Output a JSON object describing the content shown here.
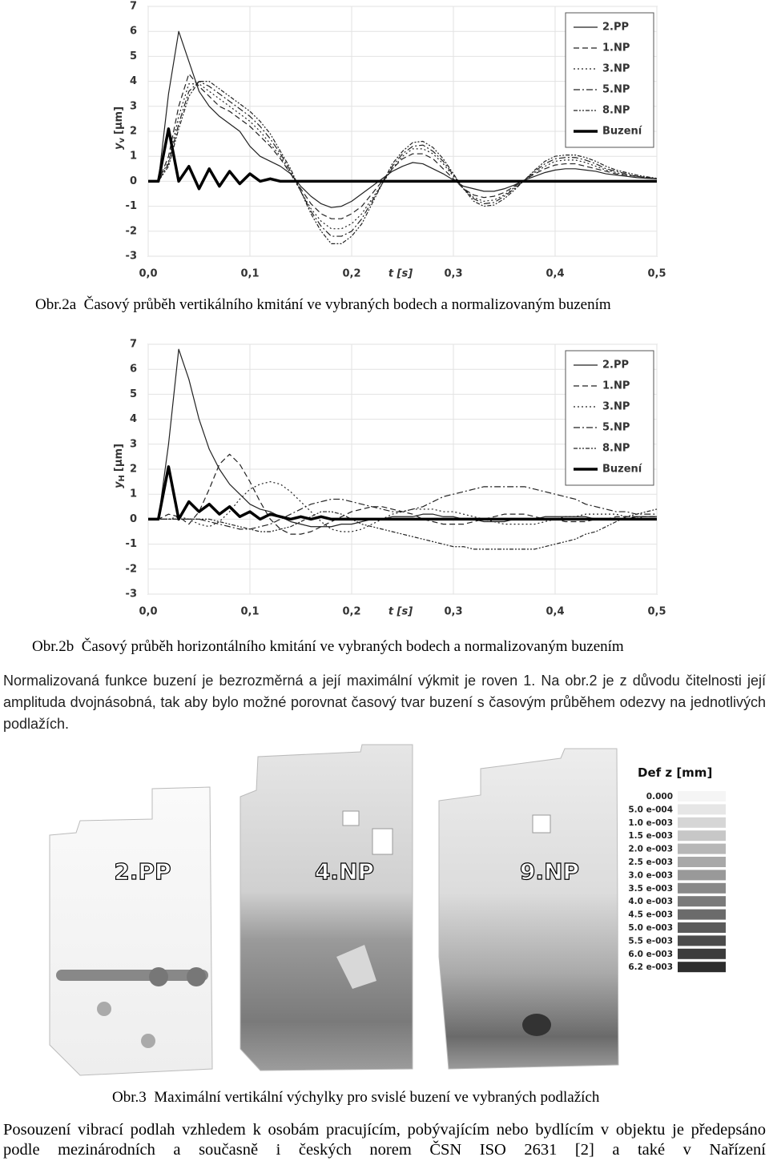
{
  "chart_data": [
    {
      "type": "line",
      "ylabel": {
        "symbol": "y",
        "subscript": "v",
        "unit": "[μm]"
      },
      "xlabel": "t [s]",
      "xlim": [
        0,
        0.5
      ],
      "ylim": [
        -3,
        7
      ],
      "xticks": [
        {
          "value": 0,
          "label": "0,0"
        },
        {
          "value": 0.1,
          "label": "0,1"
        },
        {
          "value": 0.2,
          "label": "0,2"
        },
        {
          "value": 0.3,
          "label": "0,3"
        },
        {
          "value": 0.4,
          "label": "0,4"
        },
        {
          "value": 0.5,
          "label": "0,5"
        }
      ],
      "yticks": [
        -3,
        -2,
        -1,
        0,
        1,
        2,
        3,
        4,
        5,
        6,
        7
      ],
      "grid": true,
      "legend": "upper right",
      "x": [
        0,
        0.01,
        0.02,
        0.03,
        0.04,
        0.05,
        0.06,
        0.07,
        0.08,
        0.09,
        0.1,
        0.11,
        0.12,
        0.13,
        0.14,
        0.15,
        0.16,
        0.17,
        0.18,
        0.19,
        0.2,
        0.21,
        0.22,
        0.23,
        0.24,
        0.25,
        0.26,
        0.27,
        0.28,
        0.29,
        0.3,
        0.31,
        0.32,
        0.33,
        0.34,
        0.35,
        0.36,
        0.37,
        0.38,
        0.39,
        0.4,
        0.41,
        0.42,
        0.43,
        0.44,
        0.45,
        0.46,
        0.47,
        0.48,
        0.49,
        0.5
      ],
      "series": [
        {
          "name": "2.PP",
          "color": "#222222",
          "dash": "none",
          "width": 1.2,
          "values": [
            0,
            0,
            3.5,
            6.0,
            4.8,
            3.6,
            3.0,
            2.6,
            2.3,
            2.0,
            1.4,
            1.0,
            0.8,
            0.6,
            0.3,
            -0.2,
            -0.6,
            -0.9,
            -1.05,
            -1.0,
            -0.8,
            -0.5,
            -0.2,
            0.1,
            0.4,
            0.6,
            0.75,
            0.7,
            0.5,
            0.3,
            0.05,
            -0.2,
            -0.3,
            -0.4,
            -0.4,
            -0.3,
            -0.15,
            0.05,
            0.2,
            0.35,
            0.45,
            0.5,
            0.5,
            0.45,
            0.4,
            0.3,
            0.25,
            0.2,
            0.15,
            0.12,
            0.1
          ]
        },
        {
          "name": "1.NP",
          "color": "#222222",
          "dash": "7 4",
          "width": 1.2,
          "values": [
            0,
            0,
            1.0,
            3.0,
            4.3,
            3.8,
            3.4,
            3.0,
            2.8,
            2.5,
            2.2,
            1.8,
            1.4,
            0.9,
            0.3,
            -0.3,
            -0.9,
            -1.3,
            -1.5,
            -1.5,
            -1.3,
            -1.0,
            -0.5,
            0,
            0.5,
            0.9,
            1.1,
            1.1,
            0.9,
            0.5,
            0.1,
            -0.3,
            -0.55,
            -0.65,
            -0.6,
            -0.45,
            -0.2,
            0.05,
            0.3,
            0.5,
            0.65,
            0.7,
            0.7,
            0.6,
            0.5,
            0.4,
            0.3,
            0.25,
            0.2,
            0.15,
            0.1
          ]
        },
        {
          "name": "3.NP",
          "color": "#222222",
          "dash": "2 3",
          "width": 1.2,
          "values": [
            0,
            0,
            0.8,
            2.6,
            3.9,
            3.9,
            3.6,
            3.3,
            3.0,
            2.7,
            2.4,
            2.0,
            1.5,
            1.0,
            0.3,
            -0.4,
            -1.1,
            -1.6,
            -1.9,
            -1.9,
            -1.7,
            -1.3,
            -0.7,
            -0.1,
            0.5,
            1.0,
            1.3,
            1.3,
            1.1,
            0.7,
            0.2,
            -0.3,
            -0.65,
            -0.8,
            -0.75,
            -0.55,
            -0.25,
            0.05,
            0.35,
            0.6,
            0.8,
            0.85,
            0.85,
            0.75,
            0.6,
            0.45,
            0.35,
            0.25,
            0.2,
            0.15,
            0.1
          ]
        },
        {
          "name": "5.NP",
          "color": "#222222",
          "dash": "8 3 2 3",
          "width": 1.2,
          "values": [
            0,
            0,
            0.7,
            2.3,
            3.6,
            4.0,
            3.8,
            3.5,
            3.2,
            2.9,
            2.6,
            2.2,
            1.7,
            1.1,
            0.4,
            -0.4,
            -1.2,
            -1.8,
            -2.2,
            -2.2,
            -2.0,
            -1.5,
            -0.8,
            -0.1,
            0.6,
            1.1,
            1.4,
            1.45,
            1.2,
            0.8,
            0.25,
            -0.3,
            -0.7,
            -0.9,
            -0.85,
            -0.6,
            -0.3,
            0.05,
            0.4,
            0.7,
            0.9,
            0.95,
            0.95,
            0.85,
            0.7,
            0.5,
            0.4,
            0.3,
            0.2,
            0.15,
            0.1
          ]
        },
        {
          "name": "8.NP",
          "color": "#222222",
          "dash": "5 2 2 2 2 2",
          "width": 1.2,
          "values": [
            0,
            0,
            0.6,
            2.1,
            3.4,
            4.0,
            4.0,
            3.7,
            3.4,
            3.1,
            2.8,
            2.4,
            1.9,
            1.2,
            0.5,
            -0.4,
            -1.3,
            -2.0,
            -2.5,
            -2.5,
            -2.2,
            -1.7,
            -0.9,
            -0.1,
            0.7,
            1.2,
            1.55,
            1.6,
            1.35,
            0.9,
            0.3,
            -0.3,
            -0.8,
            -1.0,
            -0.95,
            -0.7,
            -0.35,
            0.05,
            0.45,
            0.8,
            1.0,
            1.05,
            1.05,
            0.95,
            0.8,
            0.6,
            0.45,
            0.35,
            0.25,
            0.18,
            0.12
          ]
        },
        {
          "name": "Buzení",
          "color": "#000000",
          "dash": "none",
          "width": 3.5,
          "values": [
            0,
            0,
            2.1,
            0,
            0.6,
            -0.3,
            0.5,
            -0.2,
            0.4,
            -0.1,
            0.3,
            0,
            0.1,
            0,
            0,
            0,
            0,
            0,
            0,
            0,
            0,
            0,
            0,
            0,
            0,
            0,
            0,
            0,
            0,
            0,
            0,
            0,
            0,
            0,
            0,
            0,
            0,
            0,
            0,
            0,
            0,
            0,
            0,
            0,
            0,
            0,
            0,
            0,
            0,
            0,
            0
          ]
        }
      ]
    },
    {
      "type": "line",
      "ylabel": {
        "symbol": "y",
        "subscript": "H",
        "unit": "[μm]"
      },
      "xlabel": "t [s]",
      "xlim": [
        0,
        0.5
      ],
      "ylim": [
        -3,
        7
      ],
      "xticks": [
        {
          "value": 0,
          "label": "0,0"
        },
        {
          "value": 0.1,
          "label": "0,1"
        },
        {
          "value": 0.2,
          "label": "0,2"
        },
        {
          "value": 0.3,
          "label": "0,3"
        },
        {
          "value": 0.4,
          "label": "0,4"
        },
        {
          "value": 0.5,
          "label": "0,5"
        }
      ],
      "yticks": [
        -3,
        -2,
        -1,
        0,
        1,
        2,
        3,
        4,
        5,
        6,
        7
      ],
      "grid": true,
      "legend": "upper right",
      "x": [
        0,
        0.01,
        0.02,
        0.03,
        0.04,
        0.05,
        0.06,
        0.07,
        0.08,
        0.09,
        0.1,
        0.11,
        0.12,
        0.13,
        0.14,
        0.15,
        0.16,
        0.17,
        0.18,
        0.19,
        0.2,
        0.21,
        0.22,
        0.23,
        0.24,
        0.25,
        0.26,
        0.27,
        0.28,
        0.29,
        0.3,
        0.31,
        0.32,
        0.33,
        0.34,
        0.35,
        0.36,
        0.37,
        0.38,
        0.39,
        0.4,
        0.41,
        0.42,
        0.43,
        0.44,
        0.45,
        0.46,
        0.47,
        0.48,
        0.49,
        0.5
      ],
      "series": [
        {
          "name": "2.PP",
          "color": "#222222",
          "dash": "none",
          "width": 1.2,
          "values": [
            0,
            0,
            3.0,
            6.8,
            5.6,
            4.0,
            2.8,
            2.0,
            1.4,
            1.0,
            0.6,
            0.4,
            0.3,
            0.1,
            -0.1,
            -0.2,
            -0.3,
            -0.3,
            -0.3,
            -0.2,
            -0.2,
            -0.1,
            0,
            0,
            0.1,
            0.1,
            0.1,
            0.2,
            0.2,
            0.1,
            0.1,
            0,
            0,
            -0.1,
            -0.1,
            -0.1,
            0,
            0,
            0,
            0.1,
            0.1,
            0.1,
            0.1,
            0.1,
            0,
            0,
            0,
            0,
            0.1,
            0.1,
            0.1
          ]
        },
        {
          "name": "1.NP",
          "color": "#222222",
          "dash": "7 4",
          "width": 1.2,
          "values": [
            0,
            0,
            0.2,
            0.1,
            -0.2,
            0.3,
            1.2,
            2.2,
            2.6,
            2.2,
            1.5,
            0.7,
            0,
            -0.4,
            -0.6,
            -0.6,
            -0.5,
            -0.3,
            -0.1,
            0.1,
            0.3,
            0.4,
            0.5,
            0.5,
            0.4,
            0.3,
            0.2,
            0,
            -0.1,
            -0.2,
            -0.2,
            -0.2,
            -0.1,
            0,
            0.1,
            0.2,
            0.2,
            0.2,
            0.1,
            0,
            0,
            -0.1,
            -0.1,
            -0.1,
            0,
            0,
            0.1,
            0.1,
            0.1,
            0.1,
            0.1
          ]
        },
        {
          "name": "3.NP",
          "color": "#222222",
          "dash": "2 3",
          "width": 1.2,
          "values": [
            0,
            0,
            0,
            0.1,
            0,
            -0.2,
            -0.3,
            -0.1,
            0.3,
            0.8,
            1.2,
            1.4,
            1.5,
            1.4,
            1.1,
            0.7,
            0.3,
            -0.1,
            -0.4,
            -0.5,
            -0.5,
            -0.4,
            -0.2,
            0,
            0.2,
            0.3,
            0.4,
            0.4,
            0.4,
            0.3,
            0.3,
            0.2,
            0.1,
            0,
            -0.1,
            -0.2,
            -0.2,
            -0.2,
            -0.2,
            -0.1,
            0,
            0.1,
            0.1,
            0.2,
            0.2,
            0.2,
            0.2,
            0.1,
            0.1,
            0,
            0
          ]
        },
        {
          "name": "5.NP",
          "color": "#222222",
          "dash": "8 3 2 3",
          "width": 1.2,
          "values": [
            0,
            0,
            0,
            0,
            0,
            0,
            -0.1,
            -0.2,
            -0.3,
            -0.4,
            -0.4,
            -0.3,
            -0.2,
            0,
            0.2,
            0.4,
            0.6,
            0.7,
            0.8,
            0.8,
            0.7,
            0.6,
            0.5,
            0.4,
            0.3,
            0.3,
            0.4,
            0.5,
            0.7,
            0.9,
            1.0,
            1.1,
            1.2,
            1.3,
            1.3,
            1.3,
            1.3,
            1.3,
            1.2,
            1.1,
            1.0,
            0.9,
            0.8,
            0.6,
            0.5,
            0.4,
            0.3,
            0.3,
            0.2,
            0.2,
            0.2
          ]
        },
        {
          "name": "8.NP",
          "color": "#222222",
          "dash": "5 2 2 2 2 2",
          "width": 1.2,
          "values": [
            0,
            0,
            0,
            0,
            0,
            0,
            0,
            -0.1,
            -0.2,
            -0.3,
            -0.4,
            -0.5,
            -0.5,
            -0.4,
            -0.3,
            -0.1,
            0.1,
            0.3,
            0.3,
            0.2,
            0,
            -0.2,
            -0.3,
            -0.4,
            -0.5,
            -0.6,
            -0.7,
            -0.8,
            -0.9,
            -1.0,
            -1.1,
            -1.1,
            -1.2,
            -1.2,
            -1.2,
            -1.2,
            -1.2,
            -1.2,
            -1.2,
            -1.1,
            -1.0,
            -0.9,
            -0.8,
            -0.6,
            -0.5,
            -0.3,
            -0.1,
            0.1,
            0.2,
            0.3,
            0.4
          ]
        },
        {
          "name": "Buzení",
          "color": "#000000",
          "dash": "none",
          "width": 3.5,
          "values": [
            0,
            0,
            2.1,
            0,
            0.7,
            0.3,
            0.6,
            0.2,
            0.5,
            0.1,
            0.3,
            0,
            0.2,
            0.1,
            0,
            0.1,
            0,
            0.1,
            0,
            0,
            0,
            0,
            0,
            0,
            0,
            0,
            0,
            0,
            0,
            0,
            0,
            0,
            0,
            0,
            0,
            0,
            0,
            0,
            0,
            0,
            0,
            0,
            0,
            0,
            0,
            0,
            0,
            0,
            0,
            0,
            0
          ]
        }
      ]
    }
  ],
  "captions": [
    "Obr.2a  Časový průběh vertikálního kmitání ve vybraných bodech a normalizovaným buzením",
    "Obr.2b  Časový průběh horizontálního kmitání ve vybraných bodech a normalizovaným buzením",
    "Obr.3  Maximální vertikální výchylky pro svislé buzení ve vybraných podlažích"
  ],
  "paragraphs": [
    "Normalizovaná funkce buzení je bezrozměrná a její maximální výkmit je roven 1. Na obr.2 je z důvodu čitelnosti její amplituda dvojnásobná, tak aby bylo možné porovnat časový tvar buzení s časovým průběhem odezvy na jednotlivých podlažích.",
    "Posouzení vibrací podlah vzhledem k osobám pracujícím, pobývajícím nebo bydlícím v objektu je předepsáno podle mezinárodních a současně i českých norem ČSN ISO 2631 [2] a také v Nařízení"
  ],
  "figure3": {
    "plan_labels": [
      "2.PP",
      "4.NP",
      "9.NP"
    ],
    "legend_title": "Def z [mm]",
    "legend_levels": [
      "0.000",
      "5.0 e-004",
      "1.0 e-003",
      "1.5 e-003",
      "2.0 e-003",
      "2.5 e-003",
      "3.0 e-003",
      "3.5 e-003",
      "4.0 e-003",
      "4.5 e-003",
      "5.0 e-003",
      "5.5 e-003",
      "6.0 e-003",
      "6.2 e-003"
    ]
  }
}
